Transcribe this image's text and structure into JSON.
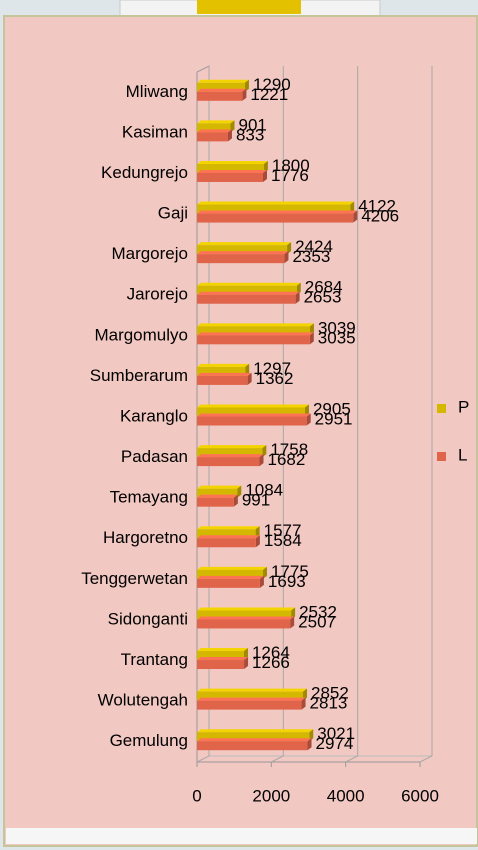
{
  "chart_data": {
    "type": "bar",
    "orientation": "horizontal",
    "categories": [
      "Mliwang",
      "Kasiman",
      "Kedungrejo",
      "Gaji",
      "Margorejo",
      "Jarorejo",
      "Margomulyo",
      "Sumberarum",
      "Karanglo",
      "Padasan",
      "Temayang",
      "Hargoretno",
      "Tenggerwetan",
      "Sidonganti",
      "Trantang",
      "Wolutengah",
      "Gemulung"
    ],
    "series": [
      {
        "name": "P",
        "color": "#d4b800",
        "values": [
          1290,
          901,
          1800,
          4122,
          2424,
          2684,
          3039,
          1297,
          2905,
          1758,
          1084,
          1577,
          1775,
          2532,
          1264,
          2852,
          3021
        ]
      },
      {
        "name": "L",
        "color": "#e0644a",
        "values": [
          1221,
          833,
          1776,
          4206,
          2353,
          2653,
          3035,
          1362,
          2951,
          1682,
          991,
          1584,
          1693,
          2507,
          1266,
          2813,
          2974
        ]
      }
    ],
    "xlim": [
      0,
      6000
    ],
    "xticks": [
      0,
      2000,
      4000,
      6000
    ],
    "grid": true,
    "legend": "right"
  }
}
